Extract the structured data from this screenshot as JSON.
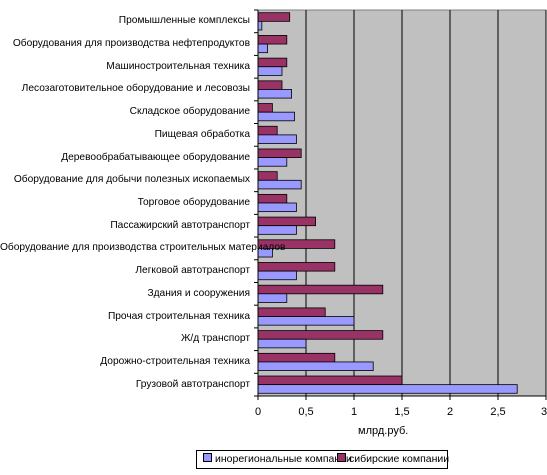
{
  "chart_data": {
    "type": "bar",
    "orientation": "horizontal",
    "xlabel": "млрд.руб.",
    "xlim": [
      0,
      3
    ],
    "xticks": [
      "0",
      "0,5",
      "1",
      "1,5",
      "2",
      "2,5",
      "3"
    ],
    "xtick_values": [
      0,
      0.5,
      1,
      1.5,
      2,
      2.5,
      3
    ],
    "grid": true,
    "legend_position": "bottom",
    "categories": [
      "Промышленные комплексы",
      "Оборудования для производства нефтепродуктов",
      "Машиностроительная техника",
      "Лесозаготовительное оборудование и лесовозы",
      "Складское оборудование",
      "Пищевая обработка",
      "Деревообрабатывающее оборудование",
      "Оборудование для добычи полезных ископаемых",
      "Торговое оборудование",
      "Пассажирский автотранспорт",
      "Оборудование для производства строительных материалов",
      "Легковой автотранспорт",
      "Здания и сооружения",
      "Прочая строительная техника",
      "Ж/д транспорт",
      "Дорожно-строительная техника",
      "Грузовой автотранспорт"
    ],
    "series": [
      {
        "name": "сибирские компании",
        "color": "#993366",
        "values": [
          0.33,
          0.3,
          0.3,
          0.25,
          0.15,
          0.2,
          0.45,
          0.2,
          0.3,
          0.6,
          0.8,
          0.8,
          1.3,
          0.7,
          1.3,
          0.8,
          1.5
        ]
      },
      {
        "name": "инорегиональные компании",
        "color": "#9999ff",
        "values": [
          0.04,
          0.1,
          0.25,
          0.35,
          0.38,
          0.4,
          0.3,
          0.45,
          0.4,
          0.4,
          0.15,
          0.4,
          0.3,
          1.0,
          0.5,
          1.2,
          2.7
        ]
      }
    ],
    "plot_background": "#c0c0c0"
  }
}
